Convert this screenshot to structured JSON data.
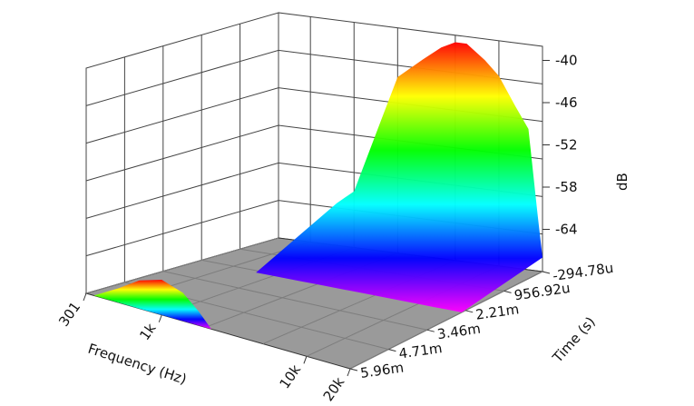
{
  "chart_data": {
    "type": "surface-3d-waterfall",
    "title": "",
    "xlabel": "Frequency (Hz)",
    "ylabel": "Time (s)",
    "zlabel": "dB",
    "x_ticks": [
      "301",
      "1k",
      "10k",
      "20k"
    ],
    "y_ticks": [
      "-294.78u",
      "956.92u",
      "2.21m",
      "3.46m",
      "4.71m",
      "5.96m"
    ],
    "z_ticks": [
      "-40",
      "-46",
      "-52",
      "-58",
      "-64"
    ],
    "x_scale": "log",
    "x_range_hz": [
      301,
      20000
    ],
    "z_range_db": [
      -70,
      -38
    ],
    "grid": true,
    "colormap": [
      "#ff00ff",
      "#0000ff",
      "#00ffff",
      "#00ff00",
      "#ffff00",
      "#ff0000"
    ],
    "surfaces": [
      {
        "name": "",
        "time_index": 0,
        "freq_hz": [
          760,
          1000,
          1500,
          2000,
          3000,
          4000,
          5000,
          6000,
          8000,
          10000,
          13000,
          16000,
          18500,
          20000
        ],
        "level_db": [
          -64,
          -62,
          -52,
          -45,
          -42,
          -40,
          -39,
          -39,
          -41,
          -43,
          -47,
          -50,
          -62,
          -68
        ]
      },
      {
        "name": "",
        "time_index": 5,
        "freq_hz": [
          340,
          500,
          700,
          1000,
          1400,
          1800,
          2200
        ],
        "level_db": [
          -70,
          -68,
          -66,
          -65,
          -66,
          -68,
          -70
        ]
      }
    ]
  }
}
